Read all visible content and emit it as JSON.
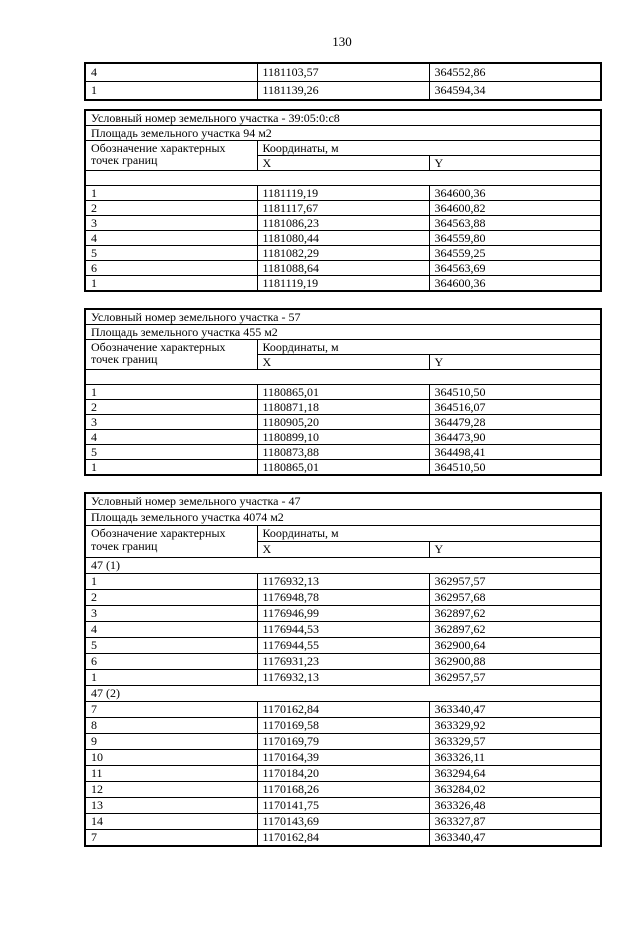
{
  "page_number": "130",
  "header_labels": {
    "designation": "Обозначение характерных точек границ",
    "coordinates": "Координаты, м",
    "x": "X",
    "y": "Y"
  },
  "tables": [
    {
      "kind": "continuation",
      "rows": [
        {
          "point": "4",
          "x": "1181103,57",
          "y": "364552,86"
        },
        {
          "point": "1",
          "x": "1181139,26",
          "y": "364594,34"
        }
      ]
    },
    {
      "kind": "parcel",
      "parcel_number_label": "Условный номер земельного участка - 39:05:0:c8",
      "area_label": "Площадь земельного участка 94 м2",
      "sections": [
        {
          "title": "",
          "rows": [
            {
              "point": "1",
              "x": "1181119,19",
              "y": "364600,36"
            },
            {
              "point": "2",
              "x": "1181117,67",
              "y": "364600,82"
            },
            {
              "point": "3",
              "x": "1181086,23",
              "y": "364563,88"
            },
            {
              "point": "4",
              "x": "1181080,44",
              "y": "364559,80"
            },
            {
              "point": "5",
              "x": "1181082,29",
              "y": "364559,25"
            },
            {
              "point": "6",
              "x": "1181088,64",
              "y": "364563,69"
            },
            {
              "point": "1",
              "x": "1181119,19",
              "y": "364600,36"
            }
          ]
        }
      ]
    },
    {
      "kind": "parcel",
      "parcel_number_label": "Условный номер земельного участка - 57",
      "area_label": "Площадь земельного участка 455 м2",
      "sections": [
        {
          "title": "",
          "rows": [
            {
              "point": "1",
              "x": "1180865,01",
              "y": "364510,50"
            },
            {
              "point": "2",
              "x": "1180871,18",
              "y": "364516,07"
            },
            {
              "point": "3",
              "x": "1180905,20",
              "y": "364479,28"
            },
            {
              "point": "4",
              "x": "1180899,10",
              "y": "364473,90"
            },
            {
              "point": "5",
              "x": "1180873,88",
              "y": "364498,41"
            },
            {
              "point": "1",
              "x": "1180865,01",
              "y": "364510,50"
            }
          ]
        }
      ]
    },
    {
      "kind": "parcel",
      "parcel_number_label": "Условный номер земельного участка - 47",
      "area_label": "Площадь земельного участка 4074 м2",
      "sections": [
        {
          "title": "47 (1)",
          "rows": [
            {
              "point": "1",
              "x": "1176932,13",
              "y": "362957,57"
            },
            {
              "point": "2",
              "x": "1176948,78",
              "y": "362957,68"
            },
            {
              "point": "3",
              "x": "1176946,99",
              "y": "362897,62"
            },
            {
              "point": "4",
              "x": "1176944,53",
              "y": "362897,62"
            },
            {
              "point": "5",
              "x": "1176944,55",
              "y": "362900,64"
            },
            {
              "point": "6",
              "x": "1176931,23",
              "y": "362900,88"
            },
            {
              "point": "1",
              "x": "1176932,13",
              "y": "362957,57"
            }
          ]
        },
        {
          "title": "47 (2)",
          "rows": [
            {
              "point": "7",
              "x": "1170162,84",
              "y": "363340,47"
            },
            {
              "point": "8",
              "x": "1170169,58",
              "y": "363329,92"
            },
            {
              "point": "9",
              "x": "1170169,79",
              "y": "363329,57"
            },
            {
              "point": "10",
              "x": "1170164,39",
              "y": "363326,11"
            },
            {
              "point": "11",
              "x": "1170184,20",
              "y": "363294,64"
            },
            {
              "point": "12",
              "x": "1170168,26",
              "y": "363284,02"
            },
            {
              "point": "13",
              "x": "1170141,75",
              "y": "363326,48"
            },
            {
              "point": "14",
              "x": "1170143,69",
              "y": "363327,87"
            },
            {
              "point": "7",
              "x": "1170162,84",
              "y": "363340,47"
            }
          ]
        }
      ]
    }
  ]
}
